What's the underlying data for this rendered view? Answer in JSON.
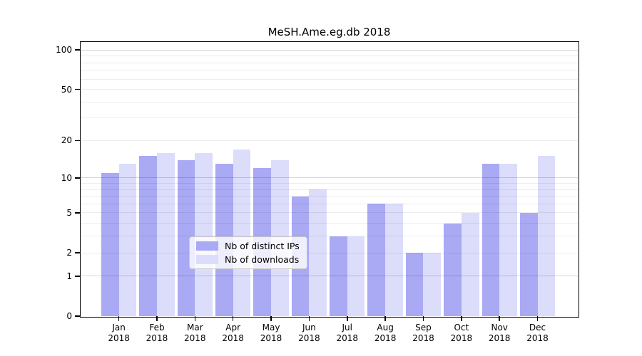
{
  "title": "MeSH.Ame.eg.db 2018",
  "chart_data": {
    "type": "bar",
    "categories": [
      "Jan 2018",
      "Feb 2018",
      "Mar 2018",
      "Apr 2018",
      "May 2018",
      "Jun 2018",
      "Jul 2018",
      "Aug 2018",
      "Sep 2018",
      "Oct 2018",
      "Nov 2018",
      "Dec 2018"
    ],
    "series": [
      {
        "name": "Nb of distinct IPs",
        "color": "#a9a9f4",
        "values": [
          11,
          15,
          14,
          13,
          12,
          7,
          3,
          6,
          2,
          4,
          13,
          5
        ]
      },
      {
        "name": "Nb of downloads",
        "color": "#dcdcfb",
        "values": [
          13,
          16,
          16,
          17,
          14,
          8,
          3,
          6,
          2,
          5,
          13,
          15
        ]
      }
    ],
    "title": "MeSH.Ame.eg.db 2018",
    "xlabel": "",
    "ylabel": "",
    "yscale": "log1p",
    "ylim": [
      0,
      115
    ],
    "ytick_values": [
      0,
      1,
      2,
      5,
      10,
      20,
      50,
      100
    ],
    "major_gridlines": [
      1,
      10,
      100
    ],
    "minor_gridlines": [
      2,
      3,
      4,
      5,
      6,
      7,
      8,
      9,
      20,
      30,
      40,
      50,
      60,
      70,
      80,
      90
    ],
    "grid": true,
    "legend_position": "lower center",
    "colors": {
      "bar_ips": "#a9a9f4",
      "bar_downloads": "#dcdcfb",
      "major_grid": "#d6d6d6",
      "minor_grid": "#ededed",
      "axis": "#000000",
      "background": "#ffffff"
    }
  }
}
